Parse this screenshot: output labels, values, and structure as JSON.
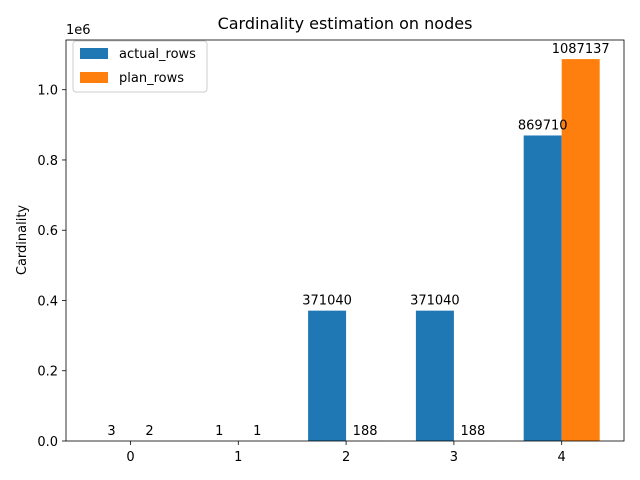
{
  "chart_data": {
    "type": "bar",
    "title": "Cardinality estimation on nodes",
    "xlabel": "",
    "ylabel": "Cardinality",
    "y_scale_label": "1e6",
    "categories": [
      "0",
      "1",
      "2",
      "3",
      "4"
    ],
    "series": [
      {
        "name": "actual_rows",
        "color": "#1f77b4",
        "values": [
          3,
          1,
          371040,
          371040,
          869710
        ]
      },
      {
        "name": "plan_rows",
        "color": "#ff7f0e",
        "values": [
          2,
          1,
          188,
          188,
          1087137
        ]
      }
    ],
    "ylim": [
      0,
      1141494
    ],
    "yticks": [
      0,
      200000,
      400000,
      600000,
      800000,
      1000000
    ],
    "ytick_labels": [
      "0.0",
      "0.2",
      "0.4",
      "0.6",
      "0.8",
      "1.0"
    ],
    "legend_position": "top-left",
    "grid": false
  }
}
